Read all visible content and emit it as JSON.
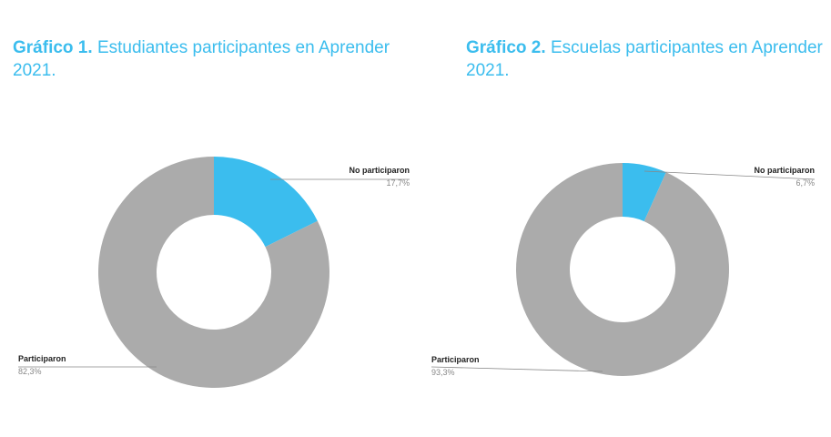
{
  "colors": {
    "accent": "#3bbdee",
    "gray": "#ababab"
  },
  "chart_data": [
    {
      "type": "pie",
      "donut": true,
      "title_bold": "Gráfico 1.",
      "title": "Estudiantes participantes en Aprender 2021.",
      "slices": [
        {
          "label": "No participaron",
          "value": 17.7,
          "value_label": "17,7%",
          "color": "#3bbdee"
        },
        {
          "label": "Participaron",
          "value": 82.3,
          "value_label": "82,3%",
          "color": "#ababab"
        }
      ]
    },
    {
      "type": "pie",
      "donut": true,
      "title_bold": "Gráfico 2.",
      "title": "Escuelas participantes en Aprender 2021.",
      "slices": [
        {
          "label": "No participaron",
          "value": 6.7,
          "value_label": "6,7%",
          "color": "#3bbdee"
        },
        {
          "label": "Participaron",
          "value": 93.3,
          "value_label": "93,3%",
          "color": "#ababab"
        }
      ]
    }
  ]
}
